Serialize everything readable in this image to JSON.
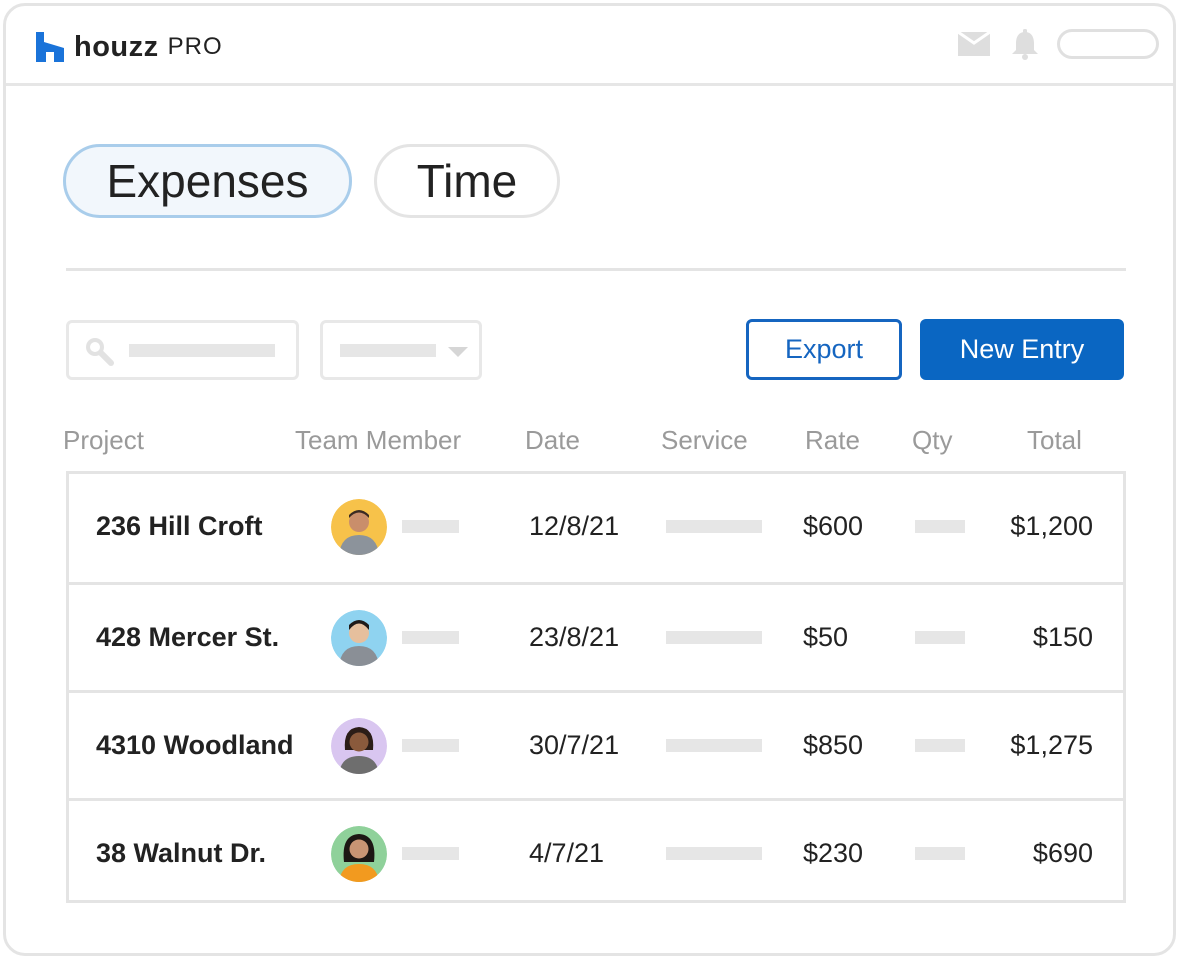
{
  "header": {
    "brand": "houzz",
    "product": "PRO",
    "icons": [
      "mail-icon",
      "bell-icon"
    ]
  },
  "tabs": [
    {
      "label": "Expenses",
      "active": true
    },
    {
      "label": "Time",
      "active": false
    }
  ],
  "toolbar": {
    "export_label": "Export",
    "new_entry_label": "New Entry"
  },
  "table": {
    "headers": [
      "Project",
      "Team Member",
      "Date",
      "Service",
      "Rate",
      "Qty",
      "Total"
    ],
    "rows": [
      {
        "project": "236 Hill Croft",
        "date": "12/8/21",
        "rate": "$600",
        "total": "$1,200",
        "avatar_color": "#f7c24a"
      },
      {
        "project": "428 Mercer St.",
        "date": "23/8/21",
        "rate": "$50",
        "total": "$150",
        "avatar_color": "#8fd3f0"
      },
      {
        "project": "4310 Woodland",
        "date": "30/7/21",
        "rate": "$850",
        "total": "$1,275",
        "avatar_color": "#d9c6f0"
      },
      {
        "project": "38 Walnut Dr.",
        "date": "4/7/21",
        "rate": "$230",
        "total": "$690",
        "avatar_color": "#8fd19a"
      }
    ]
  },
  "colors": {
    "accent": "#0a66c2",
    "logo": "#1a73d9",
    "tab_active_border": "#a9cdeb",
    "border": "#e4e4e4"
  }
}
